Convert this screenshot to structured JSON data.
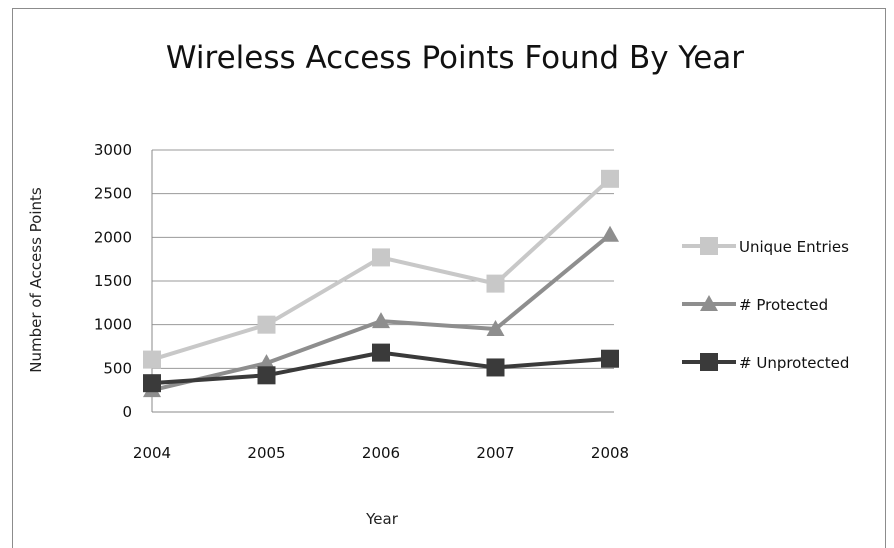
{
  "chart_data": {
    "type": "line",
    "title": "Wireless Access Points Found By Year",
    "xlabel": "Year",
    "ylabel": "Number of Access Points",
    "categories": [
      "2004",
      "2005",
      "2006",
      "2007",
      "2008"
    ],
    "yticks": [
      "0",
      "500",
      "1000",
      "1500",
      "2000",
      "2500",
      "3000"
    ],
    "ylim": [
      0,
      3000
    ],
    "grid": true,
    "legend_position": "right",
    "series": [
      {
        "name": "Unique Entries",
        "values": [
          600,
          1000,
          1770,
          1470,
          2670
        ],
        "color": "#c8c8c8",
        "marker": "square"
      },
      {
        "name": "# Protected",
        "values": [
          250,
          560,
          1040,
          950,
          2030
        ],
        "color": "#8e8e8e",
        "marker": "triangle"
      },
      {
        "name": "# Unprotected",
        "values": [
          330,
          420,
          680,
          510,
          610
        ],
        "color": "#3a3a3a",
        "marker": "square"
      }
    ]
  }
}
